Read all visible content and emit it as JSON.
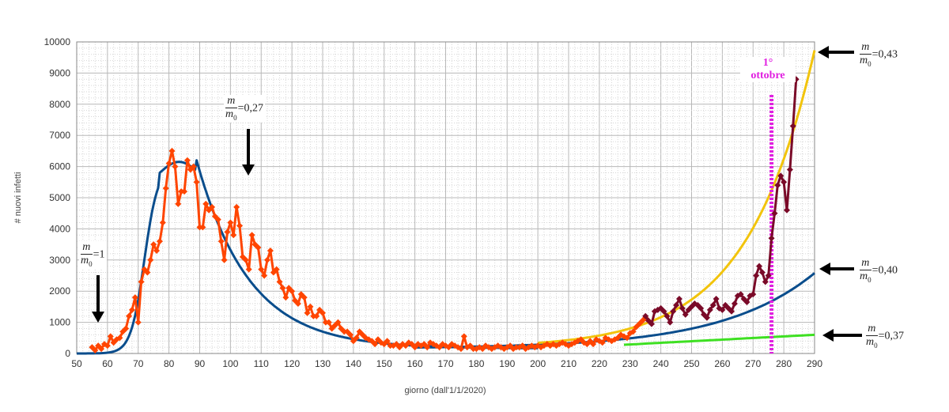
{
  "chart_data": {
    "type": "line",
    "xlabel": "giorno (dall'1/1/2020)",
    "ylabel": "# nuovi infetti",
    "xlim": [
      50,
      290
    ],
    "ylim": [
      0,
      10000
    ],
    "x_ticks": [
      50,
      60,
      70,
      80,
      90,
      100,
      110,
      120,
      130,
      140,
      150,
      160,
      170,
      180,
      190,
      200,
      210,
      220,
      230,
      240,
      250,
      260,
      270,
      280,
      290
    ],
    "y_ticks": [
      0,
      1000,
      2000,
      3000,
      4000,
      5000,
      6000,
      7000,
      8000,
      9000,
      10000
    ],
    "grid": true,
    "series": [
      {
        "color": "#ff4500",
        "marker": "diamond",
        "points": [
          [
            55,
            200
          ],
          [
            56,
            100
          ],
          [
            57,
            250
          ],
          [
            58,
            150
          ],
          [
            59,
            300
          ],
          [
            60,
            250
          ],
          [
            61,
            550
          ],
          [
            62,
            350
          ],
          [
            63,
            450
          ],
          [
            64,
            500
          ],
          [
            65,
            700
          ],
          [
            66,
            800
          ],
          [
            67,
            1200
          ],
          [
            68,
            1400
          ],
          [
            69,
            1800
          ],
          [
            70,
            1000
          ],
          [
            71,
            2300
          ],
          [
            72,
            2700
          ],
          [
            73,
            2600
          ],
          [
            74,
            3000
          ],
          [
            75,
            3500
          ],
          [
            76,
            3300
          ],
          [
            77,
            3600
          ],
          [
            78,
            4200
          ],
          [
            79,
            5300
          ],
          [
            80,
            6100
          ],
          [
            81,
            6500
          ],
          [
            82,
            6000
          ],
          [
            83,
            4800
          ],
          [
            84,
            5200
          ],
          [
            85,
            5200
          ],
          [
            86,
            6200
          ],
          [
            87,
            5900
          ],
          [
            88,
            6000
          ],
          [
            89,
            5500
          ],
          [
            90,
            4050
          ],
          [
            91,
            4050
          ],
          [
            92,
            4800
          ],
          [
            93,
            4600
          ],
          [
            94,
            4700
          ],
          [
            95,
            4400
          ],
          [
            96,
            4300
          ],
          [
            97,
            3600
          ],
          [
            98,
            3000
          ],
          [
            99,
            3900
          ],
          [
            100,
            4200
          ],
          [
            101,
            3800
          ],
          [
            102,
            4700
          ],
          [
            103,
            4100
          ],
          [
            104,
            3100
          ],
          [
            105,
            3000
          ],
          [
            106,
            2700
          ],
          [
            107,
            3800
          ],
          [
            108,
            3500
          ],
          [
            109,
            3400
          ],
          [
            110,
            2700
          ],
          [
            111,
            2500
          ],
          [
            112,
            3000
          ],
          [
            113,
            3300
          ],
          [
            114,
            2600
          ],
          [
            115,
            2700
          ],
          [
            116,
            2300
          ],
          [
            117,
            2100
          ],
          [
            118,
            1800
          ],
          [
            119,
            2100
          ],
          [
            120,
            2000
          ],
          [
            121,
            1700
          ],
          [
            122,
            1600
          ],
          [
            123,
            1900
          ],
          [
            124,
            1800
          ],
          [
            125,
            1300
          ],
          [
            126,
            1500
          ],
          [
            127,
            1200
          ],
          [
            128,
            1200
          ],
          [
            129,
            1400
          ],
          [
            130,
            1300
          ],
          [
            131,
            1000
          ],
          [
            132,
            1000
          ],
          [
            133,
            800
          ],
          [
            134,
            900
          ],
          [
            135,
            1000
          ],
          [
            136,
            800
          ],
          [
            137,
            700
          ],
          [
            138,
            700
          ],
          [
            139,
            600
          ],
          [
            140,
            400
          ],
          [
            141,
            500
          ],
          [
            142,
            700
          ],
          [
            143,
            600
          ],
          [
            144,
            500
          ],
          [
            145,
            450
          ],
          [
            146,
            400
          ],
          [
            147,
            300
          ],
          [
            148,
            450
          ],
          [
            149,
            350
          ],
          [
            150,
            300
          ],
          [
            151,
            400
          ],
          [
            152,
            250
          ],
          [
            153,
            250
          ],
          [
            154,
            300
          ],
          [
            155,
            200
          ],
          [
            156,
            300
          ],
          [
            157,
            250
          ],
          [
            158,
            350
          ],
          [
            159,
            300
          ],
          [
            160,
            200
          ],
          [
            161,
            300
          ],
          [
            162,
            250
          ],
          [
            163,
            300
          ],
          [
            164,
            200
          ],
          [
            165,
            350
          ],
          [
            166,
            300
          ],
          [
            167,
            250
          ],
          [
            168,
            200
          ],
          [
            169,
            300
          ],
          [
            170,
            250
          ],
          [
            171,
            200
          ],
          [
            172,
            300
          ],
          [
            173,
            250
          ],
          [
            174,
            200
          ],
          [
            175,
            150
          ],
          [
            176,
            550
          ],
          [
            177,
            200
          ],
          [
            178,
            250
          ],
          [
            179,
            150
          ],
          [
            180,
            150
          ],
          [
            181,
            200
          ],
          [
            182,
            150
          ],
          [
            183,
            250
          ],
          [
            184,
            200
          ],
          [
            185,
            150
          ],
          [
            186,
            200
          ],
          [
            187,
            250
          ],
          [
            188,
            200
          ],
          [
            189,
            150
          ],
          [
            190,
            200
          ],
          [
            191,
            250
          ],
          [
            192,
            150
          ],
          [
            193,
            200
          ],
          [
            194,
            200
          ],
          [
            195,
            250
          ],
          [
            196,
            150
          ],
          [
            197,
            200
          ],
          [
            198,
            250
          ],
          [
            199,
            200
          ],
          [
            200,
            250
          ],
          [
            201,
            200
          ],
          [
            202,
            250
          ],
          [
            203,
            300
          ],
          [
            204,
            250
          ],
          [
            205,
            300
          ],
          [
            206,
            250
          ],
          [
            207,
            300
          ],
          [
            208,
            350
          ],
          [
            209,
            300
          ],
          [
            210,
            250
          ],
          [
            211,
            300
          ],
          [
            212,
            350
          ],
          [
            213,
            400
          ],
          [
            214,
            450
          ],
          [
            215,
            350
          ],
          [
            216,
            300
          ],
          [
            217,
            400
          ],
          [
            218,
            300
          ],
          [
            219,
            450
          ],
          [
            220,
            400
          ],
          [
            221,
            350
          ],
          [
            222,
            500
          ],
          [
            223,
            450
          ],
          [
            224,
            400
          ],
          [
            225,
            450
          ],
          [
            226,
            500
          ],
          [
            227,
            600
          ],
          [
            228,
            550
          ],
          [
            229,
            500
          ],
          [
            230,
            650
          ],
          [
            231,
            700
          ],
          [
            232,
            850
          ],
          [
            233,
            950
          ],
          [
            234,
            1050
          ],
          [
            235,
            1150
          ]
        ]
      },
      {
        "color": "#7a0a28",
        "marker": "diamond",
        "points": [
          [
            235,
            1200
          ],
          [
            236,
            1050
          ],
          [
            237,
            950
          ],
          [
            238,
            1350
          ],
          [
            239,
            1400
          ],
          [
            240,
            1450
          ],
          [
            241,
            1350
          ],
          [
            242,
            1200
          ],
          [
            243,
            1000
          ],
          [
            244,
            1350
          ],
          [
            245,
            1550
          ],
          [
            246,
            1750
          ],
          [
            247,
            1450
          ],
          [
            248,
            1250
          ],
          [
            249,
            1400
          ],
          [
            250,
            1500
          ],
          [
            251,
            1600
          ],
          [
            252,
            1550
          ],
          [
            253,
            1450
          ],
          [
            254,
            1250
          ],
          [
            255,
            1150
          ],
          [
            256,
            1400
          ],
          [
            257,
            1550
          ],
          [
            258,
            1750
          ],
          [
            259,
            1450
          ],
          [
            260,
            1400
          ],
          [
            261,
            1550
          ],
          [
            262,
            1450
          ],
          [
            263,
            1350
          ],
          [
            264,
            1600
          ],
          [
            265,
            1850
          ],
          [
            266,
            1900
          ],
          [
            267,
            1750
          ],
          [
            268,
            1650
          ],
          [
            269,
            1850
          ],
          [
            270,
            1900
          ],
          [
            271,
            2500
          ],
          [
            272,
            2800
          ],
          [
            273,
            2600
          ],
          [
            274,
            2300
          ],
          [
            275,
            2500
          ],
          [
            276,
            3700
          ],
          [
            277,
            4500
          ],
          [
            278,
            5400
          ],
          [
            279,
            5700
          ],
          [
            280,
            5500
          ],
          [
            281,
            4600
          ],
          [
            282,
            5900
          ],
          [
            283,
            7300
          ],
          [
            284,
            8800
          ]
        ]
      }
    ],
    "model_curves": [
      {
        "label": "m/m0=1",
        "color": "#0a4d8c"
      },
      {
        "label": "m/m0=0,27",
        "color": "#0a4d8c"
      },
      {
        "label": "m/m0=0,40",
        "color": "#0a4d8c"
      },
      {
        "label": "m/m0=0,43",
        "color": "#f2c40c"
      },
      {
        "label": "m/m0=0,37",
        "color": "#3ee022"
      }
    ],
    "annotations": {
      "label_1": {
        "num": "m",
        "den": "m",
        "den_sub": "0",
        "value": "=1"
      },
      "label_027": {
        "num": "m",
        "den": "m",
        "den_sub": "0",
        "value": "=0,27"
      },
      "label_043": {
        "num": "m",
        "den": "m",
        "den_sub": "0",
        "value": "=0,43"
      },
      "label_040": {
        "num": "m",
        "den": "m",
        "den_sub": "0",
        "value": "=0,40"
      },
      "label_037": {
        "num": "m",
        "den": "m",
        "den_sub": "0",
        "value": "=0,37"
      },
      "october_line1": "1°",
      "october_line2": "ottobre",
      "october_day": 276,
      "october_color": "#e020e0"
    }
  }
}
